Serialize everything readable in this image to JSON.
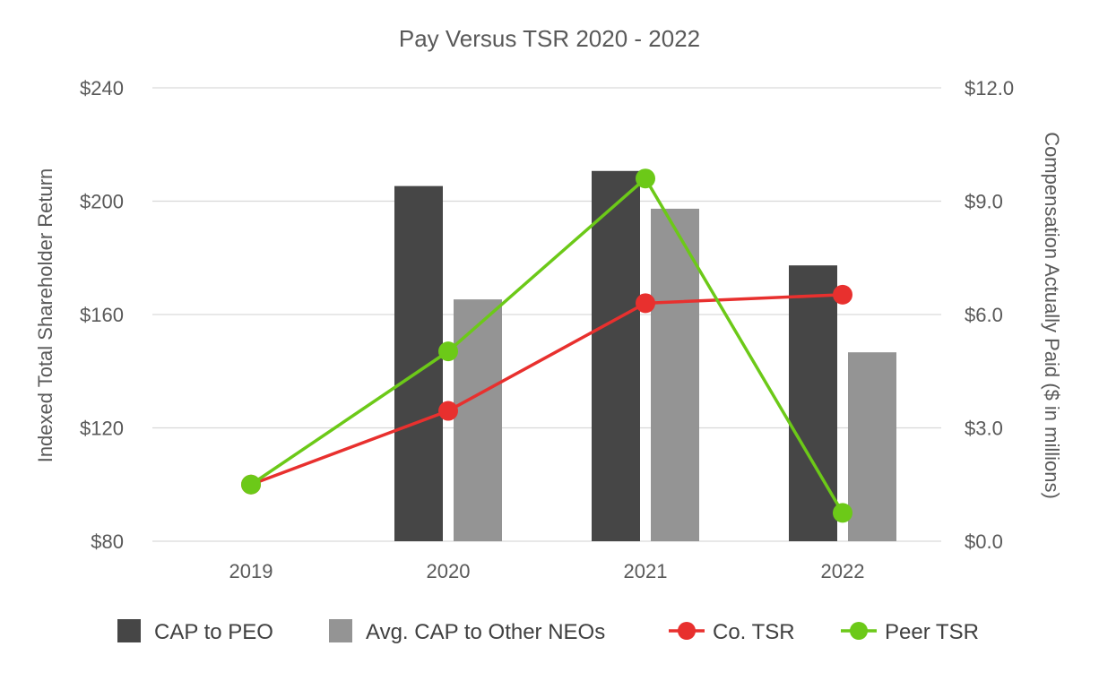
{
  "chart_data": {
    "type": "bar",
    "title": "Pay Versus TSR 2020 - 2022",
    "categories": [
      "2019",
      "2020",
      "2021",
      "2022"
    ],
    "ylabel": "Indexed Total Shareholder Return",
    "y2label": "Compensation Actually Paid ($ in millions)",
    "ylim": [
      80,
      240
    ],
    "y2lim": [
      0,
      12
    ],
    "yticks": [
      "$80",
      "$120",
      "$160",
      "$200",
      "$240"
    ],
    "y2ticks": [
      "$0.0",
      "$3.0",
      "$6.0",
      "$9.0",
      "$12.0"
    ],
    "grid": true,
    "legend_position": "bottom",
    "bar_series": [
      {
        "name": "CAP to PEO",
        "axis": "right",
        "color": "#464646",
        "values": [
          null,
          9.4,
          9.8,
          7.3
        ]
      },
      {
        "name": "Avg. CAP to Other NEOs",
        "axis": "right",
        "color": "#949494",
        "values": [
          null,
          6.4,
          8.8,
          5.0
        ]
      }
    ],
    "line_series": [
      {
        "name": "Co. TSR",
        "axis": "left",
        "color": "#e8302e",
        "values": [
          100,
          126,
          164,
          167
        ]
      },
      {
        "name": "Peer TSR",
        "axis": "left",
        "color": "#6cc918",
        "values": [
          100,
          147,
          208,
          90
        ]
      }
    ]
  }
}
